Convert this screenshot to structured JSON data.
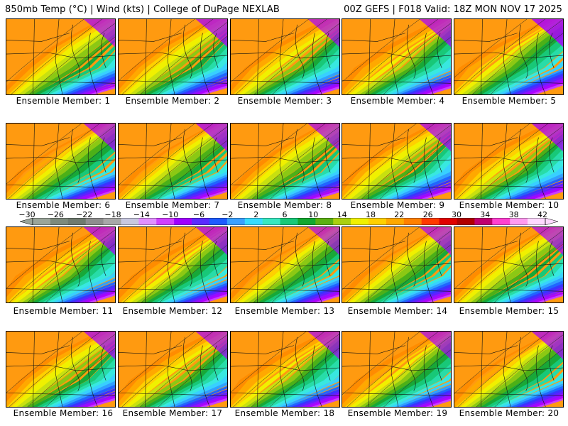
{
  "header": {
    "left": "850mb Temp (°C) | Wind (kts) | College of DuPage NEXLAB",
    "right": "00Z GEFS | F018 Valid: 18Z MON NOV 17 2025"
  },
  "members": [
    {
      "label": "Ensemble Member: 1",
      "warm": 0.55,
      "cold": 0.55
    },
    {
      "label": "Ensemble Member: 2",
      "warm": 0.5,
      "cold": 0.6
    },
    {
      "label": "Ensemble Member: 3",
      "warm": 0.55,
      "cold": 0.5
    },
    {
      "label": "Ensemble Member: 4",
      "warm": 0.55,
      "cold": 0.55
    },
    {
      "label": "Ensemble Member: 5",
      "warm": 0.35,
      "cold": 0.75
    },
    {
      "label": "Ensemble Member: 6",
      "warm": 0.4,
      "cold": 0.55
    },
    {
      "label": "Ensemble Member: 7",
      "warm": 0.5,
      "cold": 0.6
    },
    {
      "label": "Ensemble Member: 8",
      "warm": 0.45,
      "cold": 0.5
    },
    {
      "label": "Ensemble Member: 9",
      "warm": 0.35,
      "cold": 0.55
    },
    {
      "label": "Ensemble Member: 10",
      "warm": 0.45,
      "cold": 0.6
    },
    {
      "label": "Ensemble Member: 11",
      "warm": 0.45,
      "cold": 0.55
    },
    {
      "label": "Ensemble Member: 12",
      "warm": 0.55,
      "cold": 0.55
    },
    {
      "label": "Ensemble Member: 13",
      "warm": 0.5,
      "cold": 0.45
    },
    {
      "label": "Ensemble Member: 14",
      "warm": 0.5,
      "cold": 0.5
    },
    {
      "label": "Ensemble Member: 15",
      "warm": 0.45,
      "cold": 0.5
    },
    {
      "label": "Ensemble Member: 16",
      "warm": 0.45,
      "cold": 0.55
    },
    {
      "label": "Ensemble Member: 17",
      "warm": 0.45,
      "cold": 0.5
    },
    {
      "label": "Ensemble Member: 18",
      "warm": 0.4,
      "cold": 0.5
    },
    {
      "label": "Ensemble Member: 19",
      "warm": 0.55,
      "cold": 0.5
    },
    {
      "label": "Ensemble Member: 20",
      "warm": 0.5,
      "cold": 0.55
    }
  ],
  "colorbar": {
    "ticks": [
      "−30",
      "−26",
      "−22",
      "−18",
      "−14",
      "−10",
      "−6",
      "−2",
      "2",
      "6",
      "10",
      "14",
      "18",
      "22",
      "26",
      "30",
      "34",
      "38",
      "42"
    ],
    "colors": [
      "#9aa59a",
      "#7d8a7d",
      "#6f7a6f",
      "#8e8e8e",
      "#a8a8a8",
      "#c8c8e0",
      "#e090ff",
      "#d040ff",
      "#a000ff",
      "#5a2cff",
      "#1e5cff",
      "#3aa0ff",
      "#38dcff",
      "#38e8c0",
      "#18c878",
      "#12a830",
      "#5cb012",
      "#aad010",
      "#f0f000",
      "#ffd000",
      "#ffa800",
      "#ff8000",
      "#ff3a00",
      "#e00000",
      "#b00000",
      "#c00070",
      "#ff40d0",
      "#ff9af0",
      "#ffd8ff"
    ]
  }
}
